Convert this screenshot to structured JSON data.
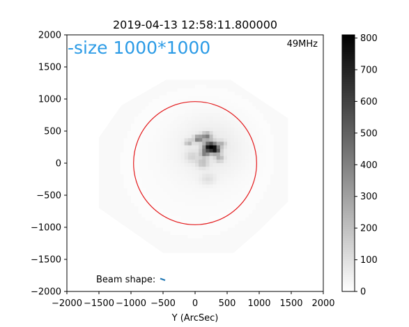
{
  "chart_data": {
    "type": "heatmap",
    "title": "2019-04-13 12:58:11.800000",
    "xlabel": "Y (ArcSec)",
    "ylabel": "",
    "xlim": [
      -2000,
      2000
    ],
    "ylim": [
      -2000,
      2000
    ],
    "x_ticks": [
      "−2000",
      "−1500",
      "−1000",
      "−500",
      "0",
      "500",
      "1000",
      "1500",
      "2000"
    ],
    "y_ticks": [
      "2000",
      "1500",
      "1000",
      "500",
      "0",
      "−500",
      "−1000",
      "−1500",
      "−2000"
    ],
    "x_tick_values": [
      -2000,
      -1500,
      -1000,
      -500,
      0,
      500,
      1000,
      1500,
      2000
    ],
    "y_tick_values": [
      2000,
      1500,
      1000,
      500,
      0,
      -500,
      -1000,
      -1500,
      -2000
    ],
    "colorbar": {
      "min": 0,
      "max": 810,
      "ticks": [
        "0",
        "100",
        "200",
        "300",
        "400",
        "500",
        "600",
        "700",
        "800"
      ],
      "tick_values": [
        0,
        100,
        200,
        300,
        400,
        500,
        600,
        700,
        800
      ],
      "colormap": "gray_r"
    },
    "solar_disk": {
      "center": [
        0,
        0
      ],
      "radius": 960,
      "color": "#e31a1c"
    },
    "annotations": {
      "size_label": "-size 1000*1000",
      "size_label_color": "#2b9be6",
      "frequency": "49MHz",
      "beam_label": "Beam shape:",
      "beam_color": "#1f77b4"
    },
    "blobs": [
      {
        "x": 240,
        "y": 250,
        "sx": 70,
        "sy": 55,
        "v": 810
      },
      {
        "x": 330,
        "y": 200,
        "sx": 45,
        "sy": 40,
        "v": 420
      },
      {
        "x": 50,
        "y": 380,
        "sx": 45,
        "sy": 35,
        "v": 420
      },
      {
        "x": 180,
        "y": 420,
        "sx": 50,
        "sy": 40,
        "v": 360
      },
      {
        "x": -100,
        "y": 320,
        "sx": 40,
        "sy": 30,
        "v": 220
      },
      {
        "x": 150,
        "y": 150,
        "sx": 45,
        "sy": 40,
        "v": 320
      },
      {
        "x": 380,
        "y": 80,
        "sx": 45,
        "sy": 40,
        "v": 200
      },
      {
        "x": 120,
        "y": 0,
        "sx": 60,
        "sy": 50,
        "v": 160
      },
      {
        "x": 420,
        "y": 300,
        "sx": 40,
        "sy": 35,
        "v": 170
      },
      {
        "x": -50,
        "y": 100,
        "sx": 70,
        "sy": 60,
        "v": 90
      },
      {
        "x": 200,
        "y": -250,
        "sx": 80,
        "sy": 60,
        "v": 70
      },
      {
        "x": 250,
        "y": 250,
        "sx": 360,
        "sy": 320,
        "v": 55
      },
      {
        "x": 0,
        "y": 0,
        "sx": 900,
        "sy": 900,
        "v": 18
      }
    ]
  }
}
